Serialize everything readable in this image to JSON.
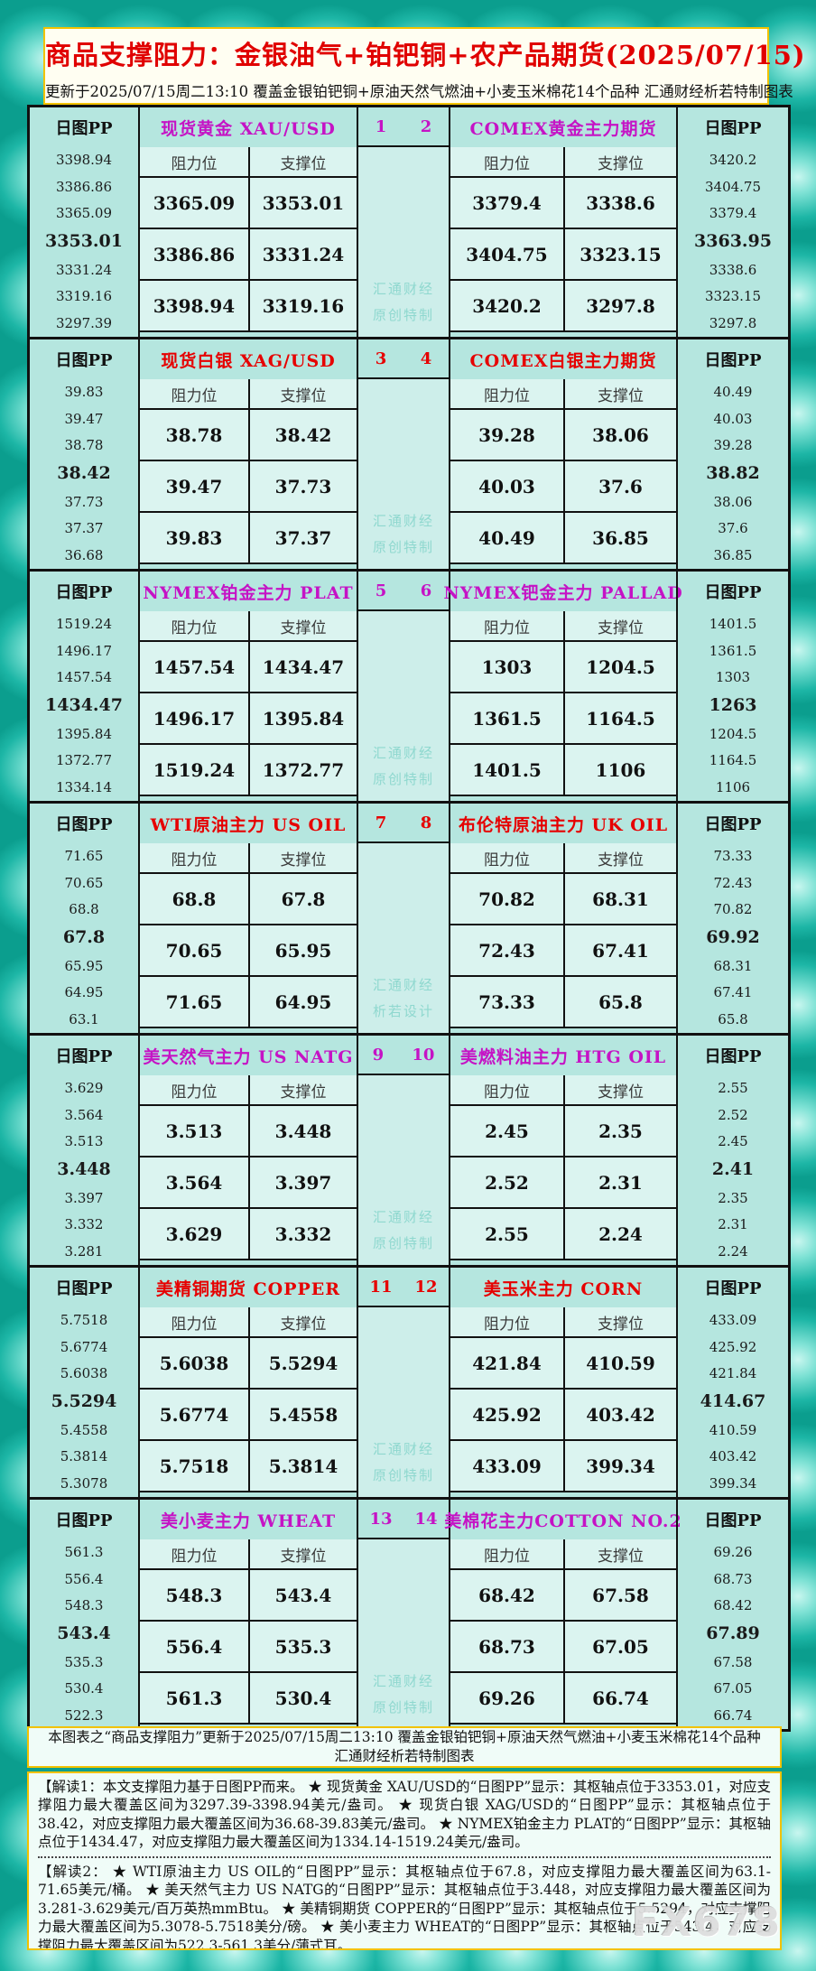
{
  "title": "商品支撑阻力：金银油气+铂钯铜+农产品期货(2025/07/15)",
  "subtitle": "更新于2025/07/15周二13:10  覆盖金银铂钯铜+原油天然气燃油+小麦玉米棉花14个品种  汇通财经析若特制图表",
  "labels": {
    "pp_header": "日图PP",
    "resistance": "阻力位",
    "support": "支撑位"
  },
  "colors": {
    "magenta": "#c513c5",
    "red": "#e60000",
    "title_red": "#e00000",
    "watermark_teal": "#8fd8cf",
    "border_yellow": "#f2c200",
    "panel_teal": "#b5e6df",
    "cell_cyan": "#dbf4f0"
  },
  "chart_data": {
    "type": "table",
    "title": "商品支撑阻力：金银油气+铂钯铜+农产品期货(2025/07/15)",
    "columns_per_instrument": [
      "阻力位",
      "支撑位"
    ],
    "sections": [
      {
        "color": "magenta",
        "nums": [
          "1",
          "2"
        ],
        "watermark": [
          "汇通财经",
          "原创特制"
        ],
        "left": {
          "title": "现货黄金 XAU/USD",
          "pp": [
            "3398.94",
            "3386.86",
            "3365.09",
            "3353.01",
            "3331.24",
            "3319.16",
            "3297.39"
          ],
          "rows": [
            [
              "3365.09",
              "3353.01"
            ],
            [
              "3386.86",
              "3331.24"
            ],
            [
              "3398.94",
              "3319.16"
            ]
          ]
        },
        "right": {
          "title": "COMEX黄金主力期货",
          "pp": [
            "3420.2",
            "3404.75",
            "3379.4",
            "3363.95",
            "3338.6",
            "3323.15",
            "3297.8"
          ],
          "rows": [
            [
              "3379.4",
              "3338.6"
            ],
            [
              "3404.75",
              "3323.15"
            ],
            [
              "3420.2",
              "3297.8"
            ]
          ]
        }
      },
      {
        "color": "red",
        "nums": [
          "3",
          "4"
        ],
        "watermark": [
          "汇通财经",
          "原创特制"
        ],
        "left": {
          "title": "现货白银 XAG/USD",
          "pp": [
            "39.83",
            "39.47",
            "38.78",
            "38.42",
            "37.73",
            "37.37",
            "36.68"
          ],
          "rows": [
            [
              "38.78",
              "38.42"
            ],
            [
              "39.47",
              "37.73"
            ],
            [
              "39.83",
              "37.37"
            ]
          ]
        },
        "right": {
          "title": "COMEX白银主力期货",
          "pp": [
            "40.49",
            "40.03",
            "39.28",
            "38.82",
            "38.06",
            "37.6",
            "36.85"
          ],
          "rows": [
            [
              "39.28",
              "38.06"
            ],
            [
              "40.03",
              "37.6"
            ],
            [
              "40.49",
              "36.85"
            ]
          ]
        }
      },
      {
        "color": "magenta",
        "nums": [
          "5",
          "6"
        ],
        "watermark": [
          "汇通财经",
          "原创特制"
        ],
        "left": {
          "title": "NYMEX铂金主力 PLAT",
          "pp": [
            "1519.24",
            "1496.17",
            "1457.54",
            "1434.47",
            "1395.84",
            "1372.77",
            "1334.14"
          ],
          "rows": [
            [
              "1457.54",
              "1434.47"
            ],
            [
              "1496.17",
              "1395.84"
            ],
            [
              "1519.24",
              "1372.77"
            ]
          ]
        },
        "right": {
          "title": "NYMEX钯金主力 PALLAD",
          "pp": [
            "1401.5",
            "1361.5",
            "1303",
            "1263",
            "1204.5",
            "1164.5",
            "1106"
          ],
          "rows": [
            [
              "1303",
              "1204.5"
            ],
            [
              "1361.5",
              "1164.5"
            ],
            [
              "1401.5",
              "1106"
            ]
          ]
        }
      },
      {
        "color": "red",
        "nums": [
          "7",
          "8"
        ],
        "watermark": [
          "汇通财经",
          "析若设计"
        ],
        "left": {
          "title": "WTI原油主力 US OIL",
          "pp": [
            "71.65",
            "70.65",
            "68.8",
            "67.8",
            "65.95",
            "64.95",
            "63.1"
          ],
          "rows": [
            [
              "68.8",
              "67.8"
            ],
            [
              "70.65",
              "65.95"
            ],
            [
              "71.65",
              "64.95"
            ]
          ]
        },
        "right": {
          "title": "布伦特原油主力 UK OIL",
          "pp": [
            "73.33",
            "72.43",
            "70.82",
            "69.92",
            "68.31",
            "67.41",
            "65.8"
          ],
          "rows": [
            [
              "70.82",
              "68.31"
            ],
            [
              "72.43",
              "67.41"
            ],
            [
              "73.33",
              "65.8"
            ]
          ]
        }
      },
      {
        "color": "magenta",
        "nums": [
          "9",
          "10"
        ],
        "watermark": [
          "汇通财经",
          "原创特制"
        ],
        "left": {
          "title": "美天然气主力 US NATG",
          "pp": [
            "3.629",
            "3.564",
            "3.513",
            "3.448",
            "3.397",
            "3.332",
            "3.281"
          ],
          "rows": [
            [
              "3.513",
              "3.448"
            ],
            [
              "3.564",
              "3.397"
            ],
            [
              "3.629",
              "3.332"
            ]
          ]
        },
        "right": {
          "title": "美燃料油主力 HTG OIL",
          "pp": [
            "2.55",
            "2.52",
            "2.45",
            "2.41",
            "2.35",
            "2.31",
            "2.24"
          ],
          "rows": [
            [
              "2.45",
              "2.35"
            ],
            [
              "2.52",
              "2.31"
            ],
            [
              "2.55",
              "2.24"
            ]
          ]
        }
      },
      {
        "color": "red",
        "nums": [
          "11",
          "12"
        ],
        "watermark": [
          "汇通财经",
          "原创特制"
        ],
        "left": {
          "title": "美精铜期货 COPPER",
          "pp": [
            "5.7518",
            "5.6774",
            "5.6038",
            "5.5294",
            "5.4558",
            "5.3814",
            "5.3078"
          ],
          "rows": [
            [
              "5.6038",
              "5.5294"
            ],
            [
              "5.6774",
              "5.4558"
            ],
            [
              "5.7518",
              "5.3814"
            ]
          ]
        },
        "right": {
          "title": "美玉米主力 CORN",
          "pp": [
            "433.09",
            "425.92",
            "421.84",
            "414.67",
            "410.59",
            "403.42",
            "399.34"
          ],
          "rows": [
            [
              "421.84",
              "410.59"
            ],
            [
              "425.92",
              "403.42"
            ],
            [
              "433.09",
              "399.34"
            ]
          ]
        }
      },
      {
        "color": "magenta",
        "nums": [
          "13",
          "14"
        ],
        "watermark": [
          "汇通财经",
          "原创特制"
        ],
        "left": {
          "title": "美小麦主力 WHEAT",
          "pp": [
            "561.3",
            "556.4",
            "548.3",
            "543.4",
            "535.3",
            "530.4",
            "522.3"
          ],
          "rows": [
            [
              "548.3",
              "543.4"
            ],
            [
              "556.4",
              "535.3"
            ],
            [
              "561.3",
              "530.4"
            ]
          ]
        },
        "right": {
          "title": "美棉花主力COTTON NO.2",
          "pp": [
            "69.26",
            "68.73",
            "68.42",
            "67.89",
            "67.58",
            "67.05",
            "66.74"
          ],
          "rows": [
            [
              "68.42",
              "67.58"
            ],
            [
              "68.73",
              "67.05"
            ],
            [
              "69.26",
              "66.74"
            ]
          ]
        }
      }
    ]
  },
  "footer_note": "本图表之“商品支撑阻力”更新于2025/07/15周二13:10  覆盖金银铂钯铜+原油天然气燃油+小麦玉米棉花14个品种  汇通财经析若特制图表",
  "notes1": "【解读1：本文支撑阻力基于日图PP而来。 ★ 现货黄金 XAU/USD的“日图PP”显示：其枢轴点位于3353.01，对应支撑阻力最大覆盖区间为3297.39-3398.94美元/盎司。 ★ 现货白银 XAG/USD的“日图PP”显示：其枢轴点位于38.42，对应支撑阻力最大覆盖区间为36.68-39.83美元/盎司。 ★ NYMEX铂金主力 PLAT的“日图PP”显示：其枢轴点位于1434.47，对应支撑阻力最大覆盖区间为1334.14-1519.24美元/盎司。",
  "notes2": "【解读2： ★ WTI原油主力 US OIL的“日图PP”显示：其枢轴点位于67.8，对应支撑阻力最大覆盖区间为63.1-71.65美元/桶。 ★ 美天然气主力 US NATG的“日图PP”显示：其枢轴点位于3.448，对应支撑阻力最大覆盖区间为3.281-3.629美元/百万英热mmBtu。 ★ 美精铜期货 COPPER的“日图PP”显示：其枢轴点位于5.5294，对应支撑阻力最大覆盖区间为5.3078-5.7518美分/磅。 ★ 美小麦主力 WHEAT的“日图PP”显示：其枢轴点位于543.4，对应支撑阻力最大覆盖区间为522.3-561.3美分/蒲式耳。",
  "fx_watermark": "FX678"
}
